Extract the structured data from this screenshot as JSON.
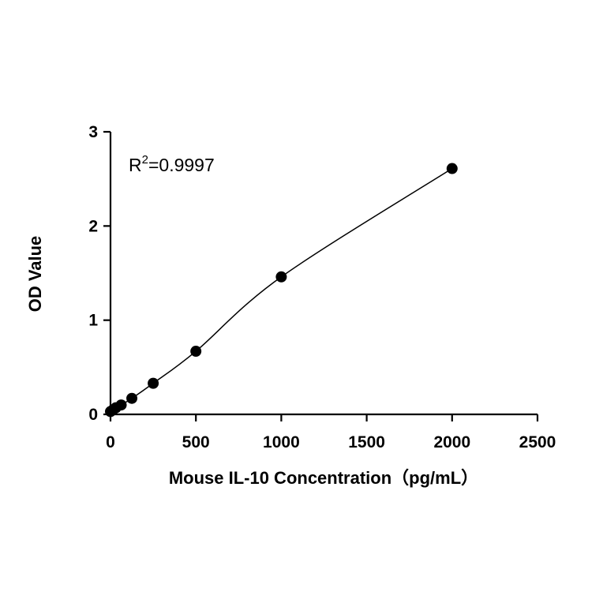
{
  "chart_data": {
    "type": "scatter",
    "xlabel": "Mouse IL-10 Concentration（pg/mL）",
    "ylabel": "OD Value",
    "xlim": [
      0,
      2500
    ],
    "ylim": [
      0,
      3
    ],
    "x_ticks": [
      0,
      500,
      1000,
      1500,
      2000,
      2500
    ],
    "y_ticks": [
      0,
      1,
      2,
      3
    ],
    "x_tick_labels": [
      "0",
      "500",
      "1000",
      "1500",
      "2000",
      "2500"
    ],
    "y_tick_labels": [
      "0",
      "1",
      "2",
      "3"
    ],
    "annotation": {
      "r_prefix": "R",
      "r_superscript": "2",
      "r_value": "=0.9997"
    },
    "grid": false,
    "points": [
      {
        "x": 0,
        "y": 0.03
      },
      {
        "x": 15.6,
        "y": 0.05
      },
      {
        "x": 31.25,
        "y": 0.07
      },
      {
        "x": 62.5,
        "y": 0.1
      },
      {
        "x": 125,
        "y": 0.17
      },
      {
        "x": 250,
        "y": 0.33
      },
      {
        "x": 500,
        "y": 0.67
      },
      {
        "x": 1000,
        "y": 1.46
      },
      {
        "x": 2000,
        "y": 2.61
      }
    ],
    "fit": "smooth curve through points"
  }
}
